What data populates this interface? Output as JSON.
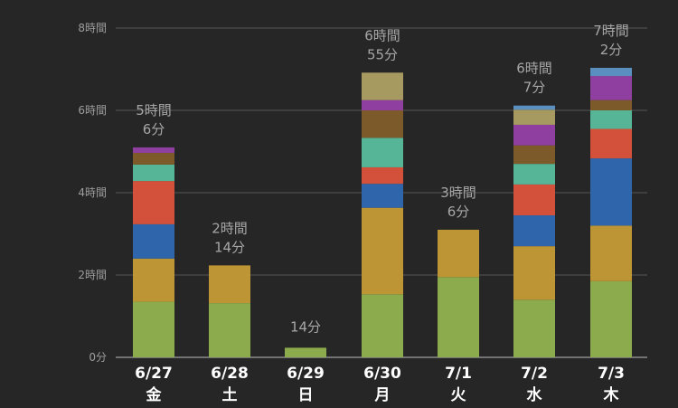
{
  "chart_data": {
    "type": "bar",
    "stacked": true,
    "categories": [
      {
        "date": "6/27",
        "day": "金"
      },
      {
        "date": "6/28",
        "day": "土"
      },
      {
        "date": "6/29",
        "day": "日"
      },
      {
        "date": "6/30",
        "day": "月"
      },
      {
        "date": "7/1",
        "day": "火"
      },
      {
        "date": "7/2",
        "day": "水"
      },
      {
        "date": "7/3",
        "day": "木"
      }
    ],
    "totals": [
      {
        "minutes": 306,
        "line1": "5時間",
        "line2": "6分"
      },
      {
        "minutes": 134,
        "line1": "2時間",
        "line2": "14分"
      },
      {
        "minutes": 14,
        "line1": "14分",
        "line2": ""
      },
      {
        "minutes": 415,
        "line1": "6時間",
        "line2": "55分"
      },
      {
        "minutes": 186,
        "line1": "3時間",
        "line2": "6分"
      },
      {
        "minutes": 367,
        "line1": "6時間",
        "line2": "7分"
      },
      {
        "minutes": 422,
        "line1": "7時間",
        "line2": "2分"
      }
    ],
    "series": [
      {
        "color": "#8bab4c",
        "values": [
          81,
          79,
          14,
          92,
          117,
          84,
          111
        ]
      },
      {
        "color": "#bd9535",
        "values": [
          63,
          55,
          0,
          126,
          69,
          78,
          81
        ]
      },
      {
        "color": "#2f65aa",
        "values": [
          50,
          0,
          0,
          35,
          0,
          45,
          98
        ]
      },
      {
        "color": "#d3513a",
        "values": [
          63,
          0,
          0,
          24,
          0,
          45,
          43
        ]
      },
      {
        "color": "#55b596",
        "values": [
          24,
          0,
          0,
          43,
          0,
          30,
          27
        ]
      },
      {
        "color": "#7c5a2a",
        "values": [
          17,
          0,
          0,
          40,
          0,
          27,
          15
        ]
      },
      {
        "color": "#8f3fa0",
        "values": [
          8,
          0,
          0,
          15,
          0,
          30,
          35
        ]
      },
      {
        "color": "#a69a60",
        "values": [
          0,
          0,
          0,
          40,
          0,
          22,
          0
        ]
      },
      {
        "color": "#5a8fbf",
        "values": [
          0,
          0,
          0,
          0,
          0,
          6,
          12
        ]
      }
    ],
    "y_ticks": [
      {
        "value": 0,
        "label": "0分"
      },
      {
        "value": 120,
        "label": "2時間"
      },
      {
        "value": 240,
        "label": "4時間"
      },
      {
        "value": 360,
        "label": "6時間"
      },
      {
        "value": 480,
        "label": "8時間"
      }
    ],
    "ylim": [
      0,
      480
    ],
    "grid": true,
    "legend": "none"
  }
}
